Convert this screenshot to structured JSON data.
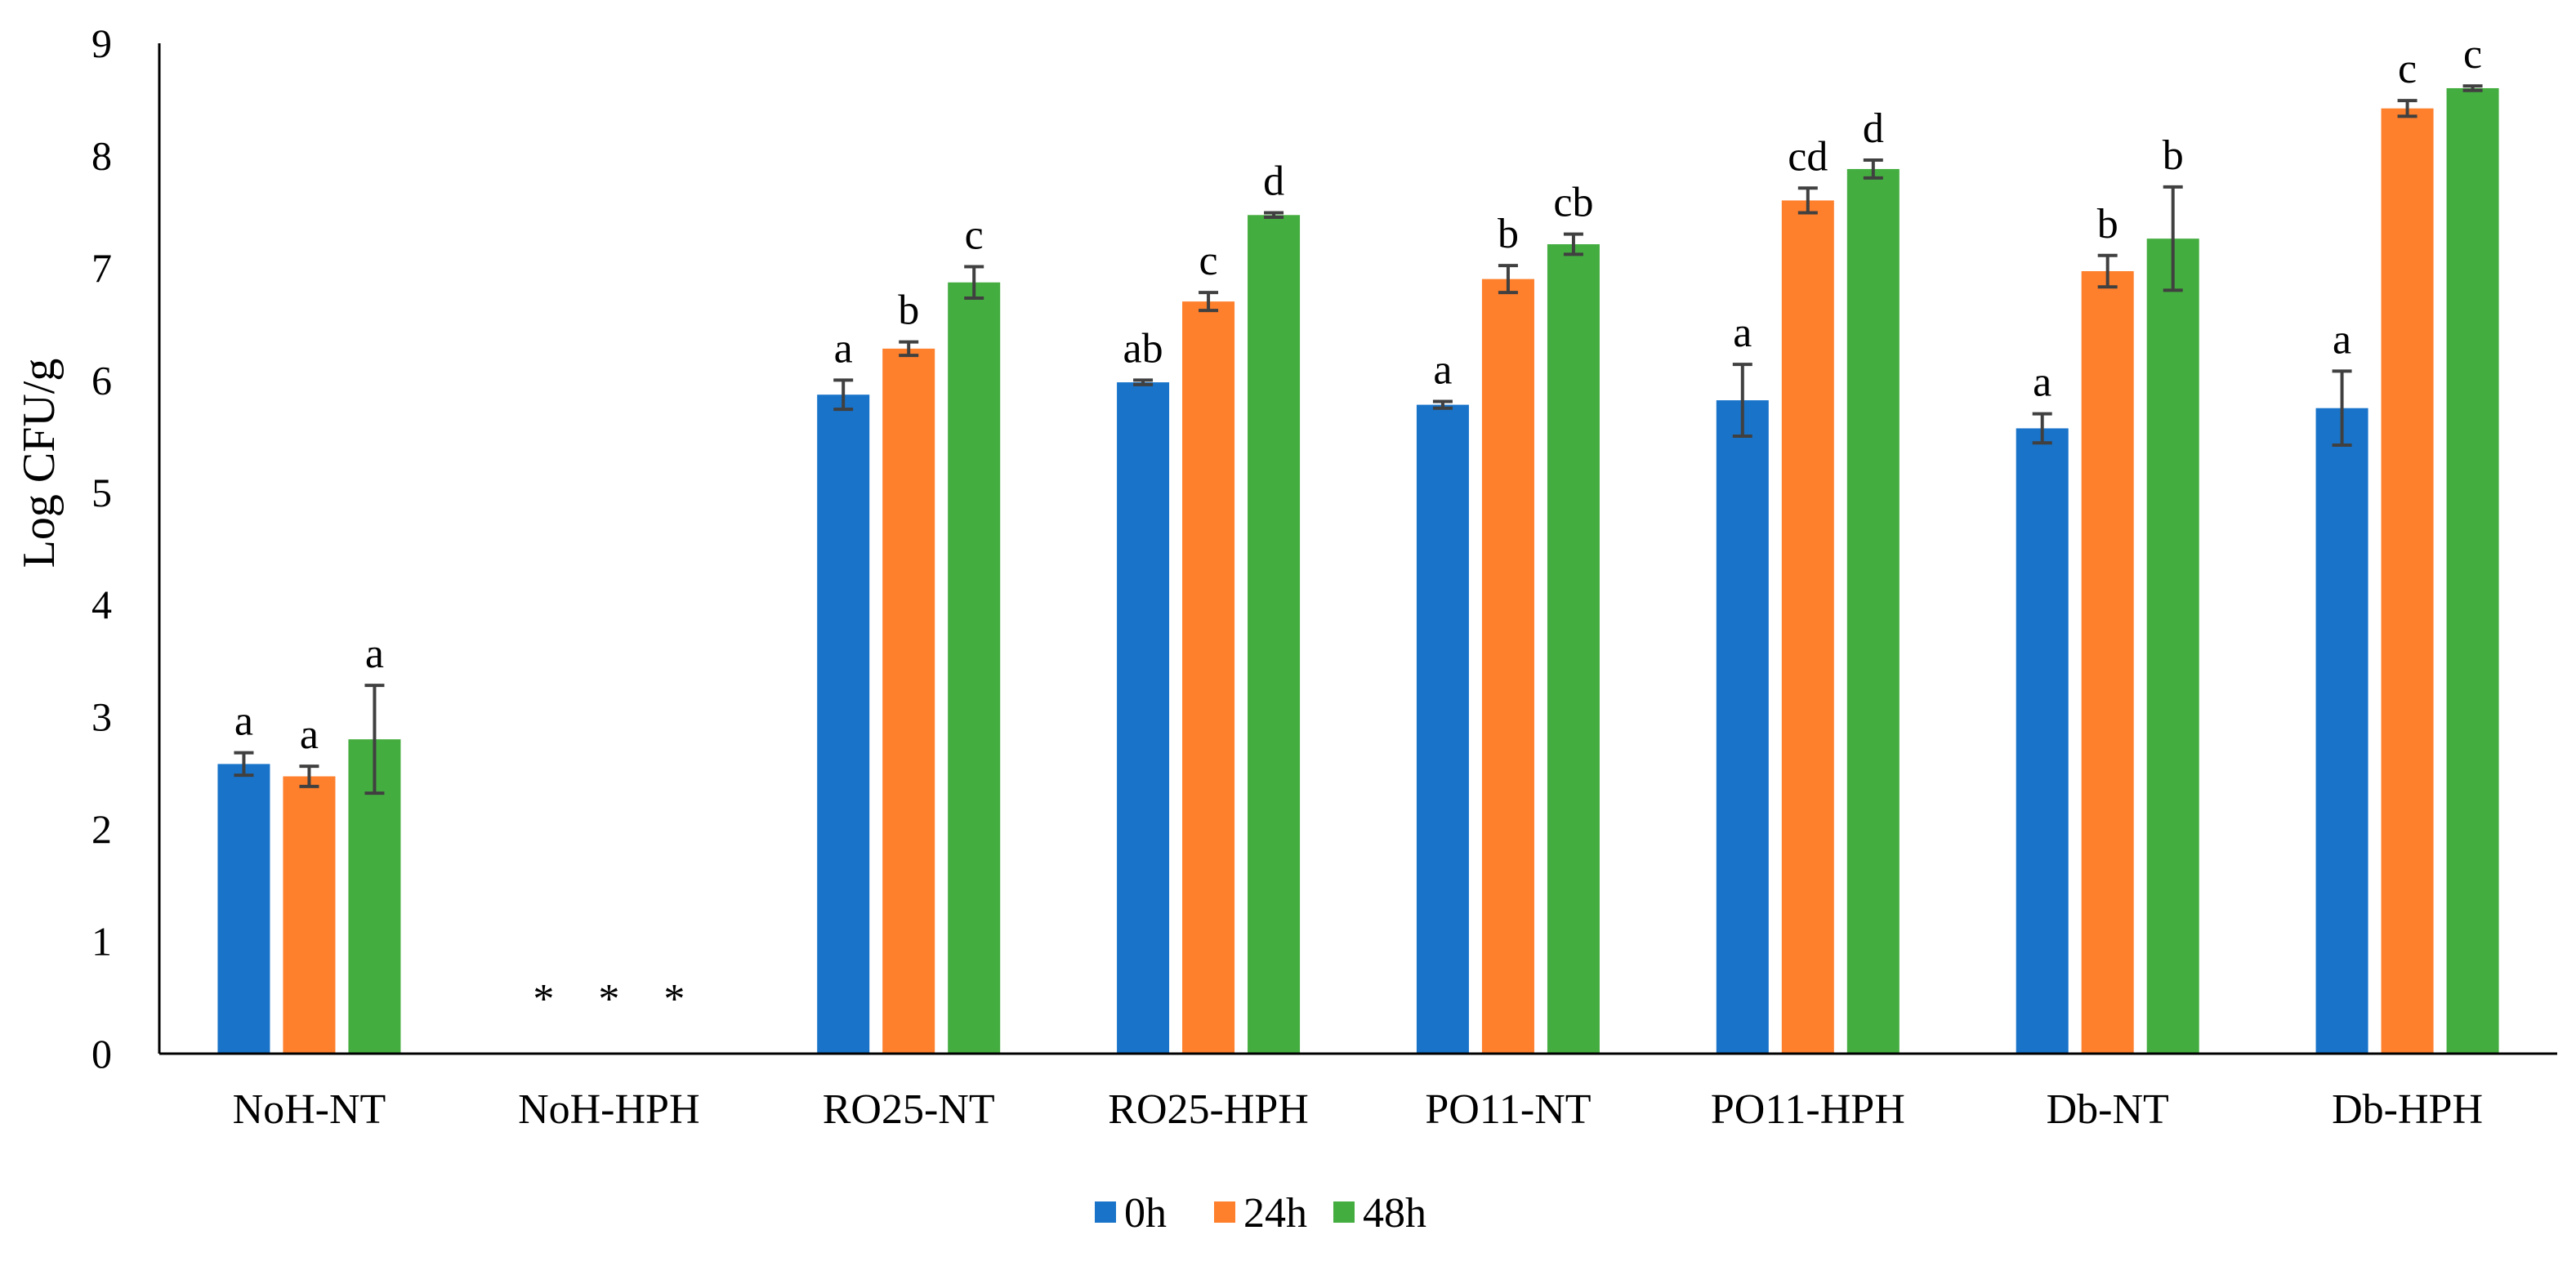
{
  "chart_data": {
    "type": "bar",
    "title": "",
    "xlabel": "",
    "ylabel": "Log CFU/g",
    "ylim": [
      0,
      9
    ],
    "yticks": [
      "0",
      "1",
      "2",
      "3",
      "4",
      "5",
      "6",
      "7",
      "8",
      "9"
    ],
    "grid": false,
    "legend_position": "bottom",
    "categories": [
      "NoH-NT",
      "NoH-HPH",
      "RO25-NT",
      "RO25-HPH",
      "PO11-NT",
      "PO11-HPH",
      "Db-NT",
      "Db-HPH"
    ],
    "series": [
      {
        "name": "0h",
        "color": "#1873C9",
        "values": [
          2.58,
          null,
          5.87,
          5.98,
          5.78,
          5.82,
          5.57,
          5.75
        ],
        "errors": [
          0.1,
          null,
          0.13,
          0.02,
          0.03,
          0.32,
          0.13,
          0.33
        ],
        "labels": [
          "a",
          "*",
          "a",
          "ab",
          "a",
          "a",
          "a",
          "a"
        ]
      },
      {
        "name": "24h",
        "color": "#FE7F2C",
        "values": [
          2.47,
          null,
          6.28,
          6.7,
          6.9,
          7.6,
          6.97,
          8.42
        ],
        "errors": [
          0.09,
          null,
          0.06,
          0.08,
          0.12,
          0.11,
          0.14,
          0.07
        ],
        "labels": [
          "a",
          "*",
          "b",
          "c",
          "b",
          "cd",
          "b",
          "c"
        ]
      },
      {
        "name": "48h",
        "color": "#44AD3F",
        "values": [
          2.8,
          null,
          6.87,
          7.47,
          7.21,
          7.88,
          7.26,
          8.6
        ],
        "errors": [
          0.48,
          null,
          0.14,
          0.02,
          0.09,
          0.08,
          0.46,
          0.02
        ],
        "labels": [
          "a",
          "*",
          "c",
          "d",
          "cb",
          "d",
          "b",
          "c"
        ]
      }
    ]
  }
}
